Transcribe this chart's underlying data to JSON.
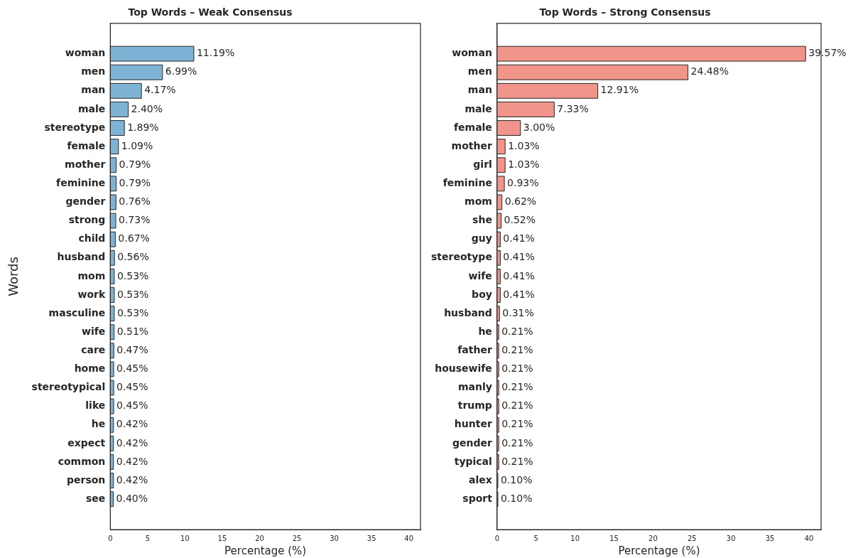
{
  "chart_data": [
    {
      "type": "bar",
      "orientation": "horizontal",
      "title": "Top Words – Weak Consensus",
      "xlabel": "Percentage (%)",
      "ylabel": "Words",
      "color": "#7fb3d5",
      "xlim": [
        0,
        41.55
      ],
      "xticks": [
        0,
        5,
        10,
        15,
        20,
        25,
        30,
        35,
        40
      ],
      "categories": [
        "woman",
        "men",
        "man",
        "male",
        "stereotype",
        "female",
        "mother",
        "feminine",
        "gender",
        "strong",
        "child",
        "husband",
        "mom",
        "work",
        "masculine",
        "wife",
        "care",
        "home",
        "stereotypical",
        "like",
        "he",
        "expect",
        "common",
        "person",
        "see"
      ],
      "values": [
        11.19,
        6.99,
        4.17,
        2.4,
        1.89,
        1.09,
        0.79,
        0.79,
        0.76,
        0.73,
        0.67,
        0.56,
        0.53,
        0.53,
        0.53,
        0.51,
        0.47,
        0.45,
        0.45,
        0.45,
        0.42,
        0.42,
        0.42,
        0.42,
        0.4
      ],
      "value_labels": [
        "11.19%",
        "6.99%",
        "4.17%",
        "2.40%",
        "1.89%",
        "1.09%",
        "0.79%",
        "0.79%",
        "0.76%",
        "0.73%",
        "0.67%",
        "0.56%",
        "0.53%",
        "0.53%",
        "0.53%",
        "0.51%",
        "0.47%",
        "0.45%",
        "0.45%",
        "0.45%",
        "0.42%",
        "0.42%",
        "0.42%",
        "0.42%",
        "0.40%"
      ]
    },
    {
      "type": "bar",
      "orientation": "horizontal",
      "title": "Top Words – Strong Consensus",
      "xlabel": "Percentage (%)",
      "color": "#f1948a",
      "xlim": [
        0,
        41.55
      ],
      "xticks": [
        0,
        5,
        10,
        15,
        20,
        25,
        30,
        35,
        40
      ],
      "categories": [
        "woman",
        "men",
        "man",
        "male",
        "female",
        "mother",
        "girl",
        "feminine",
        "mom",
        "she",
        "guy",
        "stereotype",
        "wife",
        "boy",
        "husband",
        "he",
        "father",
        "housewife",
        "manly",
        "trump",
        "hunter",
        "gender",
        "typical",
        "alex",
        "sport"
      ],
      "values": [
        39.57,
        24.48,
        12.91,
        7.33,
        3.0,
        1.03,
        1.03,
        0.93,
        0.62,
        0.52,
        0.41,
        0.41,
        0.41,
        0.41,
        0.31,
        0.21,
        0.21,
        0.21,
        0.21,
        0.21,
        0.21,
        0.21,
        0.21,
        0.1,
        0.1
      ],
      "value_labels": [
        "39.57%",
        "24.48%",
        "12.91%",
        "7.33%",
        "3.00%",
        "1.03%",
        "1.03%",
        "0.93%",
        "0.62%",
        "0.52%",
        "0.41%",
        "0.41%",
        "0.41%",
        "0.41%",
        "0.31%",
        "0.21%",
        "0.21%",
        "0.21%",
        "0.21%",
        "0.21%",
        "0.21%",
        "0.21%",
        "0.21%",
        "0.10%",
        "0.10%"
      ]
    }
  ]
}
